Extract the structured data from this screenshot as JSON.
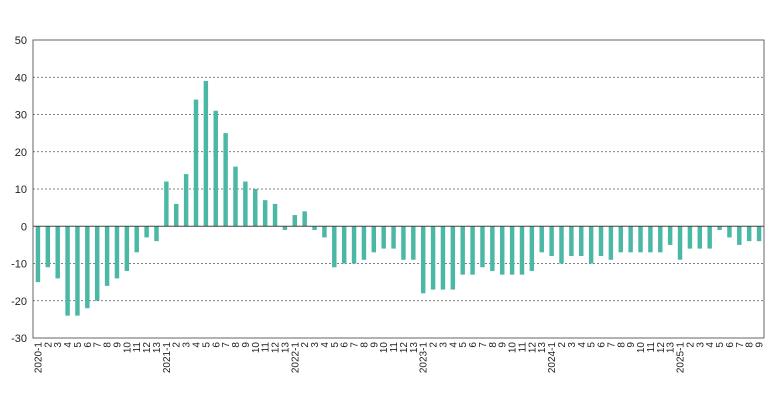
{
  "chart_data": {
    "type": "bar",
    "title": "",
    "xlabel": "",
    "ylabel": "",
    "ylim": [
      -30,
      50
    ],
    "yticks": [
      50,
      40,
      30,
      20,
      10,
      0,
      -10,
      -20,
      -30
    ],
    "grid": true,
    "bar_color": "#4BB8A6",
    "categories": [
      "2020-1",
      "2",
      "3",
      "4",
      "5",
      "6",
      "7",
      "8",
      "9",
      "10",
      "11",
      "12",
      "13",
      "2021-1",
      "2",
      "3",
      "4",
      "5",
      "6",
      "7",
      "8",
      "9",
      "10",
      "11",
      "12",
      "13",
      "2022-1",
      "2",
      "3",
      "4",
      "5",
      "6",
      "7",
      "8",
      "9",
      "10",
      "11",
      "12",
      "13",
      "2023-1",
      "2",
      "3",
      "4",
      "5",
      "6",
      "7",
      "8",
      "9",
      "10",
      "11",
      "12",
      "13",
      "2024-1",
      "2",
      "3",
      "4",
      "5",
      "6",
      "7",
      "8",
      "9",
      "10",
      "11",
      "12",
      "13",
      "2025-1",
      "2",
      "3",
      "4",
      "5",
      "6",
      "7",
      "8",
      "9"
    ],
    "x_tick_labels": [
      "2020-1",
      "2",
      "3",
      "4",
      "5",
      "6",
      "7",
      "8",
      "9",
      "10",
      "11",
      "12",
      "13",
      "2021-1",
      "2",
      "3",
      "4",
      "5",
      "6",
      "7",
      "8",
      "9",
      "10",
      "11",
      "12",
      "13",
      "2022-1",
      "2",
      "3",
      "4",
      "5",
      "6",
      "7",
      "8",
      "9",
      "10",
      "11",
      "12",
      "13",
      "2023-1",
      "2",
      "3",
      "4",
      "5",
      "6",
      "7",
      "8",
      "9",
      "10",
      "11",
      "12",
      "13",
      "2024-1",
      "2",
      "3",
      "4",
      "5",
      "6",
      "7",
      "8",
      "9",
      "10",
      "11",
      "12",
      "13",
      "2025-1",
      "2",
      "3",
      "4",
      "5",
      "6",
      "7",
      "8",
      "9"
    ],
    "values": [
      -15,
      -11,
      -14,
      -24,
      -24,
      -22,
      -20,
      -16,
      -14,
      -12,
      -7,
      -3,
      -4,
      12,
      6,
      14,
      34,
      39,
      31,
      25,
      16,
      12,
      10,
      7,
      6,
      -1,
      3,
      4,
      -1,
      -3,
      -11,
      -10,
      -10,
      -9,
      -7,
      -6,
      -6,
      -9,
      -9,
      -18,
      -17,
      -17,
      -17,
      -13,
      -13,
      -11,
      -12,
      -13,
      -13,
      -13,
      -12,
      -7,
      -8,
      -10,
      -8,
      -8,
      -10,
      -8,
      -9,
      -7,
      -7,
      -7,
      -7,
      -7,
      -5,
      -9,
      -6,
      -6,
      -6,
      -1,
      -3,
      -5,
      -4,
      -4
    ]
  }
}
